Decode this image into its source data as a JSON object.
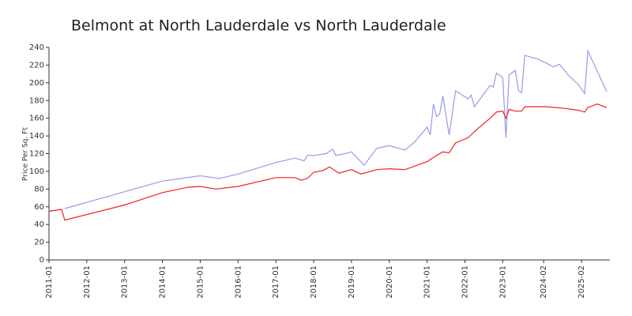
{
  "chart_data": {
    "type": "line",
    "title": "Belmont at North Lauderdale vs North Lauderdale",
    "y_label": "Price Per Sq. Ft",
    "xticks": [
      "2011-01",
      "2012-01",
      "2013-01",
      "2014-01",
      "2015-01",
      "2016-01",
      "2017-01",
      "2018-01",
      "2019-01",
      "2020-01",
      "2021-01",
      "2022-01",
      "2023-01",
      "2024-02",
      "2025-02"
    ],
    "xlim": [
      "2011-01",
      "2025-11"
    ],
    "ylim": [
      0,
      240
    ],
    "yticks": [
      0,
      20,
      40,
      60,
      80,
      100,
      120,
      140,
      160,
      180,
      200,
      220,
      240
    ],
    "series": [
      {
        "name": "North Lauderdale",
        "color": "#9999ee",
        "x": [
          "2011-06",
          "2013-01",
          "2014-01",
          "2015-01",
          "2015-07",
          "2016-01",
          "2017-01",
          "2017-06",
          "2017-07",
          "2017-10",
          "2017-11",
          "2018-01",
          "2018-05",
          "2018-07",
          "2018-08",
          "2018-11",
          "2019-01",
          "2019-05",
          "2019-09",
          "2020-01",
          "2020-06",
          "2020-09",
          "2021-01",
          "2021-02",
          "2021-03",
          "2021-04",
          "2021-05",
          "2021-06",
          "2021-08",
          "2021-10",
          "2022-02",
          "2022-03",
          "2022-04",
          "2022-09",
          "2022-10",
          "2022-11",
          "2023-01",
          "2023-02",
          "2023-03",
          "2023-05",
          "2023-06",
          "2023-07",
          "2023-08",
          "2023-12",
          "2024-03",
          "2024-05",
          "2024-07",
          "2024-10",
          "2025-01",
          "2025-03",
          "2025-04",
          "2025-10"
        ],
        "values": [
          58,
          77,
          89,
          95,
          92,
          97,
          110,
          114,
          115,
          112,
          118,
          118,
          120,
          125,
          118,
          120,
          122,
          107,
          126,
          129,
          124,
          133,
          150,
          141,
          176,
          162,
          165,
          185,
          141,
          191,
          182,
          186,
          173,
          197,
          195,
          211,
          206,
          138,
          209,
          214,
          191,
          189,
          231,
          227,
          222,
          218,
          221,
          208,
          198,
          188,
          236,
          190
        ]
      },
      {
        "name": "Belmont at North Lauderdale",
        "color": "#ee2222",
        "x": [
          "2011-01",
          "2011-05",
          "2011-06",
          "2013-01",
          "2014-01",
          "2014-09",
          "2015-01",
          "2015-06",
          "2016-01",
          "2017-01",
          "2017-07",
          "2017-09",
          "2017-11",
          "2018-01",
          "2018-04",
          "2018-06",
          "2018-09",
          "2019-01",
          "2019-04",
          "2019-09",
          "2020-01",
          "2020-06",
          "2021-01",
          "2021-04",
          "2021-06",
          "2021-08",
          "2021-10",
          "2022-02",
          "2022-05",
          "2022-09",
          "2022-11",
          "2023-01",
          "2023-02",
          "2023-03",
          "2023-05",
          "2023-07",
          "2023-08",
          "2024-03",
          "2024-09",
          "2025-01",
          "2025-03",
          "2025-04",
          "2025-07",
          "2025-10"
        ],
        "values": [
          55,
          57,
          45,
          62,
          76,
          82,
          83,
          80,
          83,
          93,
          93,
          90,
          92,
          99,
          101,
          105,
          98,
          102,
          97,
          102,
          103,
          102,
          111,
          118,
          122,
          121,
          132,
          138,
          148,
          160,
          167,
          168,
          160,
          170,
          168,
          168,
          173,
          173,
          171,
          169,
          167,
          172,
          176,
          172
        ]
      }
    ]
  }
}
